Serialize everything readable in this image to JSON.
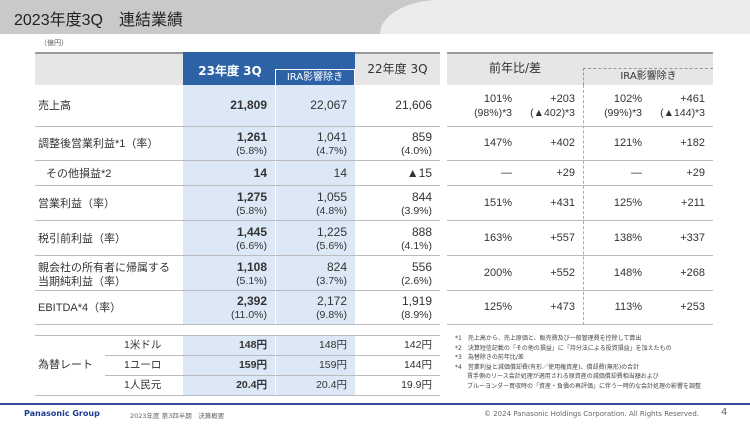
{
  "title": "2023年度3Q　連結業績",
  "unit": "（億円）",
  "headers": {
    "current": "23年度 3Q",
    "ira": "IRA影響除き",
    "prior": "22年度 3Q",
    "yoy": "前年比/差",
    "yoy_ira": "IRA影響除き"
  },
  "rows": [
    {
      "label": "売上高",
      "c": "21,809",
      "i": "22,067",
      "p": "21,606",
      "y1": "101%",
      "y1b": "(98%)*3",
      "y2": "+203",
      "y2b": "(▲402)*3",
      "z1": "102%",
      "z1b": "(99%)*3",
      "z2": "+461",
      "z2b": "(▲144)*3"
    },
    {
      "label": "調整後営業利益*1（率）",
      "c": "1,261",
      "cb": "(5.8%)",
      "i": "1,041",
      "ib": "(4.7%)",
      "p": "859",
      "pb": "(4.0%)",
      "y1": "147%",
      "y2": "+402",
      "z1": "121%",
      "z2": "+182"
    },
    {
      "label": "その他損益*2",
      "c": "14",
      "i": "14",
      "p": "▲15",
      "y1": "—",
      "y2": "+29",
      "z1": "—",
      "z2": "+29"
    },
    {
      "label": "営業利益（率）",
      "c": "1,275",
      "cb": "(5.8%)",
      "i": "1,055",
      "ib": "(4.8%)",
      "p": "844",
      "pb": "(3.9%)",
      "y1": "151%",
      "y2": "+431",
      "z1": "125%",
      "z2": "+211"
    },
    {
      "label": "税引前利益（率）",
      "c": "1,445",
      "cb": "(6.6%)",
      "i": "1,225",
      "ib": "(5.6%)",
      "p": "888",
      "pb": "(4.1%)",
      "y1": "163%",
      "y2": "+557",
      "z1": "138%",
      "z2": "+337"
    },
    {
      "label": "親会社の所有者に帰属する",
      "label2": "当期純利益（率）",
      "c": "1,108",
      "cb": "(5.1%)",
      "i": "824",
      "ib": "(3.7%)",
      "p": "556",
      "pb": "(2.6%)",
      "y1": "200%",
      "y2": "+552",
      "z1": "148%",
      "z2": "+268"
    },
    {
      "label": "EBITDA*4（率）",
      "c": "2,392",
      "cb": "(11.0%)",
      "i": "2,172",
      "ib": "(9.8%)",
      "p": "1,919",
      "pb": "(8.9%)",
      "y1": "125%",
      "y2": "+473",
      "z1": "113%",
      "z2": "+253"
    }
  ],
  "fx": {
    "label": "為替レート",
    "rows": [
      {
        "label": "1米ドル",
        "c": "148円",
        "i": "148円",
        "p": "142円"
      },
      {
        "label": "1ユーロ",
        "c": "159円",
        "i": "159円",
        "p": "144円"
      },
      {
        "label": "1人民元",
        "c": "20.4円",
        "i": "20.4円",
        "p": "19.9円"
      }
    ]
  },
  "footnotes": [
    "*1　売上高から、売上原価と、販売費及び一般管理費を控除して算出",
    "*2　決算短信記載の「その他の損益」に「持分法による投資損益」を加えたもの",
    "*3　為替除きの前年比/差",
    "*4　営業利益と減価償却費(有形／使用権資産)、償却費(無形)の合計",
    "　　賃手側のリース会計処理が適用される原資産の減価償却費相当額および",
    "　　ブルーヨンダー買収時の「資産・負債の再評価」に伴う一時的な会計処理の影響を調整"
  ],
  "footer": {
    "brand": "Panasonic Group",
    "subtitle": "2023年度 第3四半期　決算概要",
    "copyright": "© 2024 Panasonic Holdings Corporation. All Rights Reserved.",
    "page": "4"
  }
}
